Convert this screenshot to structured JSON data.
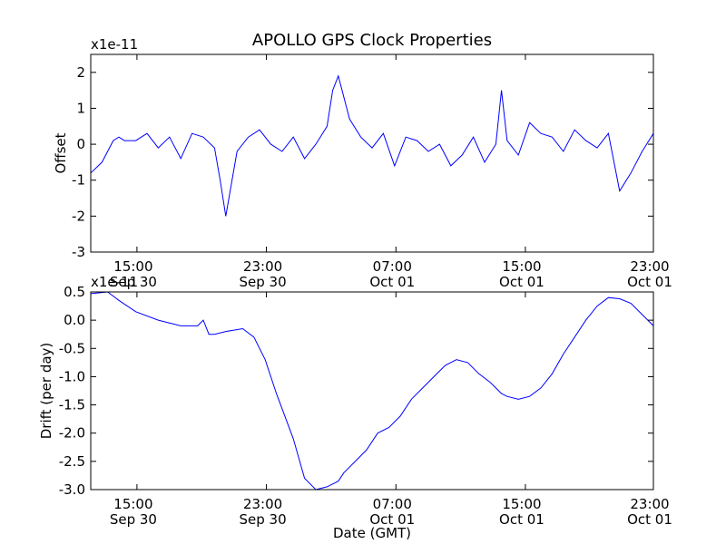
{
  "figure": {
    "title": "APOLLO GPS Clock Properties"
  },
  "chart_data": [
    {
      "type": "line",
      "name": "offset",
      "title": "APOLLO GPS Clock Properties",
      "xlabel": "",
      "ylabel": "Offset",
      "y_scale_label": "x1e-11",
      "ylim": [
        -3,
        2.5
      ],
      "xlim": [
        0,
        1
      ],
      "yticks": [
        2,
        1,
        0,
        -1,
        -2,
        -3
      ],
      "yticklabels": [
        "2",
        "1",
        "0",
        "-1",
        "-2",
        "-3"
      ],
      "xticks": [
        {
          "pos": 0.0821,
          "time": "15:00",
          "date": "Sep 30"
        },
        {
          "pos": 0.3122,
          "time": "23:00",
          "date": "Sep 30"
        },
        {
          "pos": 0.5424,
          "time": "07:00",
          "date": "Oct 01"
        },
        {
          "pos": 0.7725,
          "time": "15:00",
          "date": "Oct 01"
        },
        {
          "pos": 1.0,
          "time": "23:00",
          "date": "Oct 01"
        }
      ],
      "series": [
        {
          "name": "Offset",
          "color": "#0000ff",
          "x": [
            0,
            0.02,
            0.04,
            0.05,
            0.06,
            0.08,
            0.1,
            0.12,
            0.14,
            0.16,
            0.18,
            0.2,
            0.22,
            0.23,
            0.24,
            0.26,
            0.28,
            0.3,
            0.32,
            0.34,
            0.36,
            0.38,
            0.4,
            0.42,
            0.43,
            0.44,
            0.46,
            0.48,
            0.5,
            0.52,
            0.54,
            0.56,
            0.58,
            0.6,
            0.62,
            0.64,
            0.66,
            0.68,
            0.7,
            0.72,
            0.73,
            0.74,
            0.76,
            0.78,
            0.8,
            0.82,
            0.84,
            0.86,
            0.88,
            0.9,
            0.92,
            0.94,
            0.96,
            0.98,
            1.0
          ],
          "y": [
            -0.8,
            -0.5,
            0.1,
            0.2,
            0.1,
            0.1,
            0.3,
            -0.1,
            0.2,
            -0.4,
            0.3,
            0.2,
            -0.1,
            -1.0,
            -2.0,
            -0.2,
            0.2,
            0.4,
            0.0,
            -0.2,
            0.2,
            -0.4,
            0.0,
            0.5,
            1.5,
            1.9,
            0.7,
            0.2,
            -0.1,
            0.3,
            -0.6,
            0.2,
            0.1,
            -0.2,
            0.0,
            -0.6,
            -0.3,
            0.2,
            -0.5,
            0.0,
            1.5,
            0.1,
            -0.3,
            0.6,
            0.3,
            0.2,
            -0.2,
            0.4,
            0.1,
            -0.1,
            0.3,
            -1.3,
            -0.8,
            -0.2,
            0.3
          ]
        }
      ]
    },
    {
      "type": "line",
      "name": "drift",
      "title": "",
      "xlabel": "Date (GMT)",
      "ylabel": "Drift (per day)",
      "y_scale_label": "x1e-11",
      "ylim": [
        -3.0,
        0.5
      ],
      "xlim": [
        0,
        1
      ],
      "yticks": [
        0.5,
        0.0,
        -0.5,
        -1.0,
        -1.5,
        -2.0,
        -2.5,
        -3.0
      ],
      "yticklabels": [
        "0.5",
        "0.0",
        "-0.5",
        "-1.0",
        "-1.5",
        "-2.0",
        "-2.5",
        "-3.0"
      ],
      "xticks": [
        {
          "pos": 0.0821,
          "time": "15:00",
          "date": "Sep 30"
        },
        {
          "pos": 0.3122,
          "time": "23:00",
          "date": "Sep 30"
        },
        {
          "pos": 0.5424,
          "time": "07:00",
          "date": "Oct 01"
        },
        {
          "pos": 0.7725,
          "time": "15:00",
          "date": "Oct 01"
        },
        {
          "pos": 1.0,
          "time": "23:00",
          "date": "Oct 01"
        }
      ],
      "series": [
        {
          "name": "Drift",
          "color": "#0000ff",
          "x": [
            0.0,
            0.03,
            0.05,
            0.08,
            0.12,
            0.16,
            0.19,
            0.2,
            0.21,
            0.22,
            0.24,
            0.27,
            0.29,
            0.31,
            0.33,
            0.36,
            0.38,
            0.4,
            0.42,
            0.44,
            0.45,
            0.47,
            0.49,
            0.51,
            0.53,
            0.55,
            0.57,
            0.59,
            0.61,
            0.63,
            0.65,
            0.67,
            0.69,
            0.71,
            0.72,
            0.73,
            0.74,
            0.76,
            0.78,
            0.8,
            0.82,
            0.84,
            0.86,
            0.88,
            0.9,
            0.92,
            0.94,
            0.96,
            0.98,
            1.0
          ],
          "y": [
            0.47,
            0.5,
            0.35,
            0.15,
            0.0,
            -0.1,
            -0.1,
            0.0,
            -0.25,
            -0.25,
            -0.2,
            -0.15,
            -0.3,
            -0.7,
            -1.3,
            -2.1,
            -2.8,
            -3.0,
            -2.95,
            -2.85,
            -2.7,
            -2.5,
            -2.3,
            -2.0,
            -1.9,
            -1.7,
            -1.4,
            -1.2,
            -1.0,
            -0.8,
            -0.7,
            -0.75,
            -0.95,
            -1.1,
            -1.2,
            -1.3,
            -1.35,
            -1.4,
            -1.35,
            -1.2,
            -0.95,
            -0.6,
            -0.3,
            0.0,
            0.25,
            0.4,
            0.38,
            0.3,
            0.1,
            -0.1
          ]
        }
      ]
    }
  ]
}
